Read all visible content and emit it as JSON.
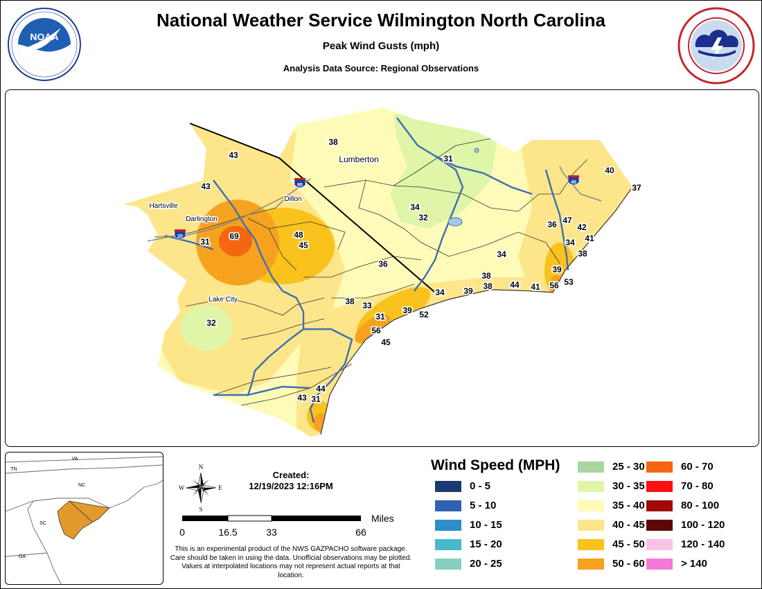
{
  "header": {
    "title": "National Weather Service Wilmington North Carolina",
    "subtitle": "Peak Wind Gusts (mph)",
    "source": "Analysis Data Source: Regional Observations"
  },
  "logos": {
    "left_text": "NOAA",
    "left_ring_text": "NATIONAL OCEANIC AND ATMOSPHERIC ADMINISTRATION · U.S. DEPARTMENT OF COMMERCE",
    "right_ring_text": "NATIONAL WEATHER SERVICE · U.S. DEPARTMENT OF COMMERCE"
  },
  "map": {
    "cities": [
      {
        "name": "Lumberton",
        "big": true
      },
      {
        "name": "Hartsville",
        "big": false
      },
      {
        "name": "Darlington",
        "big": false
      },
      {
        "name": "Dillon",
        "big": false
      },
      {
        "name": "Lake City",
        "big": false
      }
    ],
    "highways": [
      "95",
      "20",
      "40"
    ],
    "gusts": [
      "43",
      "43",
      "38",
      "31",
      "40",
      "37",
      "69",
      "31",
      "48",
      "45",
      "34",
      "32",
      "36",
      "47",
      "42",
      "41",
      "34",
      "38",
      "36",
      "34",
      "39",
      "38",
      "38",
      "44",
      "41",
      "56",
      "53",
      "34",
      "39",
      "38",
      "33",
      "31",
      "39",
      "52",
      "56",
      "45",
      "32",
      "44",
      "43",
      "31"
    ]
  },
  "inset": {
    "states": [
      "VA",
      "TN",
      "NC",
      "SC",
      "GA"
    ],
    "highlight_color": "#e39a2d"
  },
  "created": {
    "label": "Created:",
    "datetime": "12/19/2023 12:16PM"
  },
  "compass": {
    "n": "N",
    "s": "S",
    "e": "E",
    "w": "W"
  },
  "scale": {
    "unit": "Miles",
    "ticks": [
      "0",
      "16.5",
      "33",
      "66"
    ]
  },
  "disclaimer": "This is an experimental product of the NWS GAZPACHO software package. Care should be taken in using the data. Unofficial observations may be plotted. Values at interpolated locations may not represent actual reports at that location.",
  "legend": {
    "title": "Wind Speed (MPH)",
    "items": [
      {
        "label": "0 - 5",
        "color": "#1a3a72"
      },
      {
        "label": "5 - 10",
        "color": "#2f62b0"
      },
      {
        "label": "10 - 15",
        "color": "#2c8fc8"
      },
      {
        "label": "15 - 20",
        "color": "#4ab7cf"
      },
      {
        "label": "20 - 25",
        "color": "#86d0c0"
      },
      {
        "label": "25 - 30",
        "color": "#a9d69e"
      },
      {
        "label": "30 - 35",
        "color": "#dff5a8"
      },
      {
        "label": "35 - 40",
        "color": "#fefbb8"
      },
      {
        "label": "40 - 45",
        "color": "#fde58a"
      },
      {
        "label": "45 - 50",
        "color": "#f9c21c"
      },
      {
        "label": "50 - 60",
        "color": "#f6a21f"
      },
      {
        "label": "60 - 70",
        "color": "#f4660f"
      },
      {
        "label": "70 - 80",
        "color": "#fb0f0f"
      },
      {
        "label": "80 - 100",
        "color": "#a10a0a"
      },
      {
        "label": "100 - 120",
        "color": "#5e0708"
      },
      {
        "label": "120 - 140",
        "color": "#f9c2e4"
      },
      {
        "label": "> 140",
        "color": "#f57ad7"
      }
    ]
  }
}
